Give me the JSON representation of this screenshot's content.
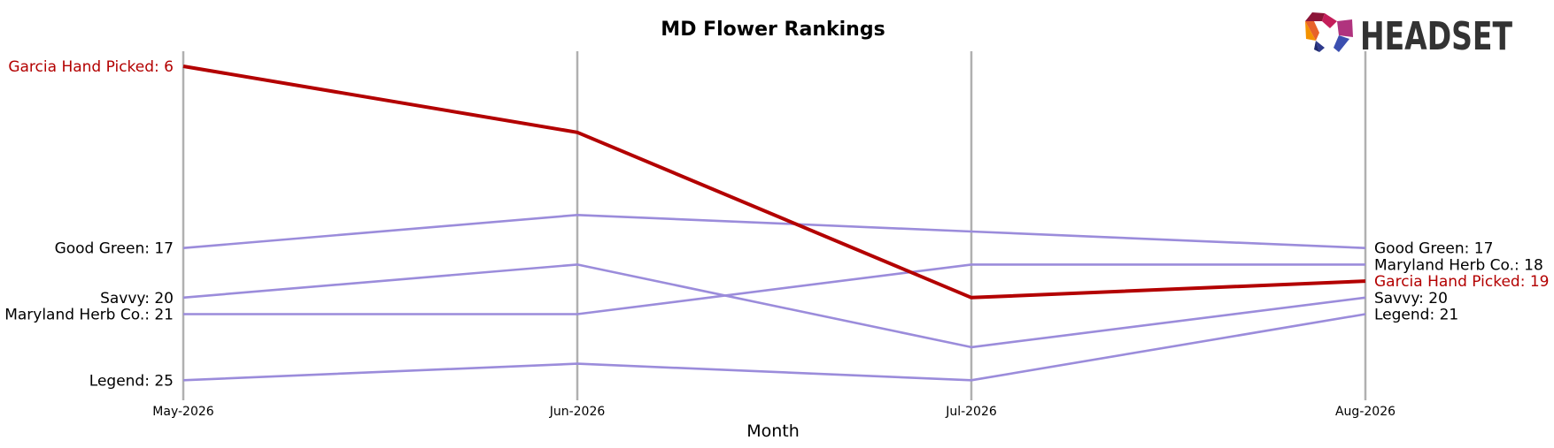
{
  "chart_data": {
    "type": "line",
    "title": "MD Flower Rankings",
    "xlabel": "Month",
    "ylabel": "",
    "categories": [
      "May-2026",
      "Jun-2026",
      "Jul-2026",
      "Aug-2026"
    ],
    "y_inverted": true,
    "ylim": [
      5,
      26
    ],
    "grid": "vertical lines at each month",
    "series": [
      {
        "name": "Garcia Hand Picked",
        "values": [
          6,
          10,
          20,
          19
        ],
        "color": "#b30000",
        "highlight": true
      },
      {
        "name": "Good Green",
        "values": [
          17,
          15,
          16,
          17
        ],
        "color": "#9b8cdb",
        "highlight": false
      },
      {
        "name": "Savvy",
        "values": [
          20,
          18,
          23,
          20
        ],
        "color": "#9b8cdb",
        "highlight": false
      },
      {
        "name": "Maryland Herb Co.",
        "values": [
          21,
          21,
          18,
          18
        ],
        "color": "#9b8cdb",
        "highlight": false
      },
      {
        "name": "Legend",
        "values": [
          25,
          24,
          25,
          21
        ],
        "color": "#9b8cdb",
        "highlight": false
      }
    ],
    "left_labels": [
      {
        "text": "Garcia Hand Picked: 6",
        "series": 0
      },
      {
        "text": "Good Green: 17",
        "series": 1
      },
      {
        "text": "Savvy: 20",
        "series": 2
      },
      {
        "text": "Maryland Herb Co.: 21",
        "series": 3
      },
      {
        "text": "Legend: 25",
        "series": 4
      }
    ],
    "right_labels": [
      {
        "text": "Good Green: 17",
        "series": 1
      },
      {
        "text": "Maryland Herb Co.: 18",
        "series": 3
      },
      {
        "text": "Garcia Hand Picked: 19",
        "series": 0
      },
      {
        "text": "Savvy: 20",
        "series": 2
      },
      {
        "text": "Legend: 21",
        "series": 4
      }
    ]
  },
  "logo": {
    "text": "HEADSET"
  },
  "colors": {
    "highlight": "#b30000",
    "other": "#9b8cdb",
    "gridline": "#b0b0b0"
  }
}
